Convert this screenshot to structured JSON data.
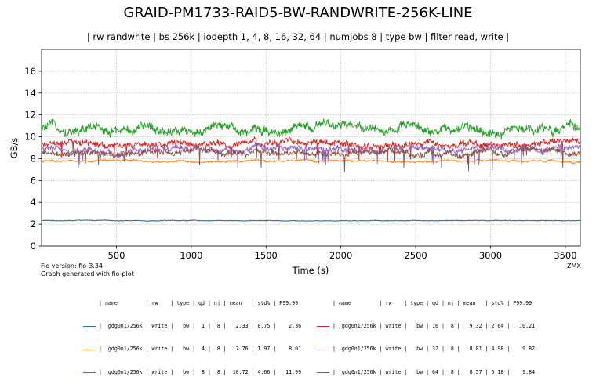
{
  "chart_data": {
    "type": "line",
    "title": "GRAID-PM1733-RAID5-BW-RANDWRITE-256K-LINE",
    "subtitle": "| rw randwrite | bs 256k | iodepth 1, 4, 8, 16, 32, 64 | numjobs 8 | type bw | filter read, write |",
    "xlabel": "Time (s)",
    "ylabel": "GB/s",
    "xlim": [
      0,
      3600
    ],
    "ylim": [
      0,
      18
    ],
    "xticks": [
      500,
      1000,
      1500,
      2000,
      2500,
      3000,
      3500
    ],
    "yticks": [
      0,
      2,
      4,
      6,
      8,
      10,
      12,
      14,
      16
    ],
    "grid": true,
    "series": [
      {
        "name": "gdg0n1/256k",
        "rw": "write",
        "type": "bw",
        "qd": "1",
        "nj": "8",
        "mean": "2.33",
        "std": "0.75",
        "p9999": "2.36",
        "color": "#1f77b4"
      },
      {
        "name": "gdg0n1/256k",
        "rw": "write",
        "type": "bw",
        "qd": "4",
        "nj": "8",
        "mean": "7.76",
        "std": "1.97",
        "p9999": "8.01",
        "color": "#ff7f0e"
      },
      {
        "name": "gdg0n1/256k",
        "rw": "write",
        "type": "bw",
        "qd": "8",
        "nj": "8",
        "mean": "10.72",
        "std": "4.66",
        "p9999": "11.99",
        "color": "#2ca02c"
      },
      {
        "name": "gdg0n1/256k",
        "rw": "write",
        "type": "bw",
        "qd": "16",
        "nj": "8",
        "mean": "9.32",
        "std": "2.64",
        "p9999": "10.21",
        "color": "#d62728"
      },
      {
        "name": "gdg0n1/256k",
        "rw": "write",
        "type": "bw",
        "qd": "32",
        "nj": "8",
        "mean": "8.81",
        "std": "4.98",
        "p9999": "9.82",
        "color": "#9467bd"
      },
      {
        "name": "gdg0n1/256k",
        "rw": "write",
        "type": "bw",
        "qd": "64",
        "nj": "8",
        "mean": "8.57",
        "std": "5.18",
        "p9999": "9.84",
        "color": "#8c564b"
      }
    ]
  },
  "footer": {
    "fio_version": "Fio version: fio-3.34",
    "generated_with": "Graph generated with fio-plot",
    "corner_tag": "ZMX"
  },
  "legend": {
    "header": "| name         | rw    | type | qd | nj | mean   | std% | P99.99",
    "rows": [
      "|  gdg0n1/256k | write |   bw |  1 |  8 |   2.33 | 0.75 |    2.36",
      "|  gdg0n1/256k | write |   bw |  4 |  8 |   7.76 | 1.97 |    8.01",
      "|  gdg0n1/256k | write |   bw |  8 |  8 |  10.72 | 4.66 |   11.99",
      "|  gdg0n1/256k | write |   bw | 16 |  8 |   9.32 | 2.64 |   10.21",
      "|  gdg0n1/256k | write |   bw | 32 |  8 |   8.81 | 4.98 |    9.82",
      "|  gdg0n1/256k | write |   bw | 64 |  8 |   8.57 | 5.18 |    9.84"
    ]
  }
}
